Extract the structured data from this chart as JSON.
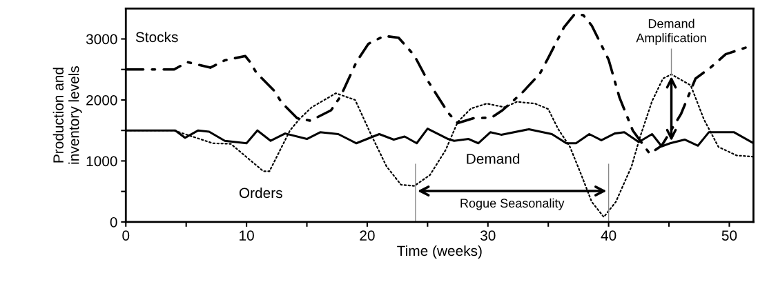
{
  "chart_data": {
    "type": "line",
    "xlabel": "Time (weeks)",
    "ylabel": "Production and\ninventory levels",
    "xlim": [
      0,
      52
    ],
    "ylim": [
      0,
      3500
    ],
    "xticks": [
      0,
      {
        "value": 5,
        "label": null
      },
      10,
      {
        "value": 15,
        "label": null
      },
      20,
      {
        "value": 25,
        "label": null
      },
      30,
      {
        "value": 35,
        "label": null
      },
      40,
      {
        "value": 45,
        "label": null
      },
      50
    ],
    "yticks": [
      0,
      {
        "value": 500,
        "label": null
      },
      1000,
      {
        "value": 1500,
        "label": null
      },
      2000,
      {
        "value": 2500,
        "label": null
      },
      3000
    ],
    "grid": false,
    "legend": false,
    "marker": "none",
    "series": [
      {
        "name": "Stocks",
        "color": "#000000",
        "line_style": "dashdot",
        "x": [
          0,
          4,
          5.1,
          7,
          8.2,
          9.9,
          10.3,
          10.8,
          12.3,
          12.9,
          14.2,
          15.3,
          17,
          17.8,
          19.1,
          20.1,
          21.4,
          22.6,
          23.9,
          25,
          26.7,
          27.5,
          28.8,
          30.3,
          31.2,
          32.8,
          34.3,
          35,
          36.3,
          37.2,
          37.9,
          38.6,
          40,
          40.9,
          42,
          43.4,
          44.4,
          46,
          47.2,
          48.5,
          49.7,
          51.7,
          52
        ],
        "values": [
          2500,
          2500,
          2620,
          2530,
          2650,
          2720,
          2620,
          2450,
          2150,
          1960,
          1700,
          1660,
          1830,
          2060,
          2620,
          2920,
          3050,
          3020,
          2730,
          2320,
          1790,
          1620,
          1700,
          1710,
          1830,
          2110,
          2430,
          2690,
          3190,
          3410,
          3390,
          3220,
          2660,
          2040,
          1500,
          1120,
          1250,
          1770,
          2350,
          2540,
          2750,
          2880,
          2900
        ]
      },
      {
        "name": "Orders",
        "color": "#000000",
        "line_style": "dotted",
        "x": [
          0,
          4,
          4.9,
          7.2,
          8.7,
          11.4,
          11.9,
          13.6,
          14.4,
          15.4,
          17.4,
          19,
          20.3,
          21.6,
          22.8,
          23.9,
          25.2,
          26.5,
          27.5,
          28.6,
          29.9,
          31.4,
          32.4,
          33.9,
          35,
          35.8,
          36.8,
          37.7,
          38.6,
          39.6,
          40.6,
          41.9,
          42.6,
          43.6,
          44.5,
          45.2,
          46.8,
          47.9,
          49.1,
          50.6,
          52
        ],
        "values": [
          1500,
          1500,
          1440,
          1290,
          1280,
          830,
          830,
          1500,
          1690,
          1880,
          2110,
          2000,
          1440,
          910,
          610,
          590,
          770,
          1180,
          1640,
          1860,
          1940,
          1880,
          1970,
          1940,
          1850,
          1530,
          1230,
          790,
          330,
          80,
          330,
          910,
          1390,
          1980,
          2350,
          2420,
          2240,
          1680,
          1230,
          1090,
          1070
        ]
      },
      {
        "name": "Demand",
        "color": "#000000",
        "line_style": "solid",
        "x": [
          0,
          4.1,
          4.9,
          6,
          6.9,
          8.2,
          10,
          10.9,
          12,
          13.2,
          15,
          16.1,
          17.6,
          19.1,
          21,
          22.2,
          23.1,
          24.1,
          25,
          26.7,
          27.2,
          28.4,
          29.2,
          30.2,
          31.1,
          33.4,
          35.3,
          36.5,
          37.3,
          38.4,
          39.4,
          40.5,
          41.3,
          42.5,
          43.6,
          44.4,
          45.1,
          46.3,
          47.4,
          48.3,
          50.4,
          52
        ],
        "values": [
          1500,
          1500,
          1380,
          1500,
          1480,
          1330,
          1290,
          1500,
          1330,
          1450,
          1360,
          1470,
          1440,
          1290,
          1440,
          1350,
          1400,
          1290,
          1530,
          1360,
          1330,
          1360,
          1290,
          1470,
          1430,
          1520,
          1440,
          1290,
          1290,
          1440,
          1340,
          1450,
          1470,
          1310,
          1440,
          1240,
          1290,
          1350,
          1250,
          1470,
          1470,
          1290
        ]
      }
    ],
    "ref_lines": [
      {
        "axis": "x",
        "value": 24,
        "color": "#888888"
      },
      {
        "axis": "x",
        "value": 40,
        "color": "#888888"
      },
      {
        "axis": "x",
        "value": 45.2,
        "color": "#888888"
      }
    ],
    "annotations": [
      "Rogue Seasonality",
      "Demand\nAmplification"
    ]
  }
}
